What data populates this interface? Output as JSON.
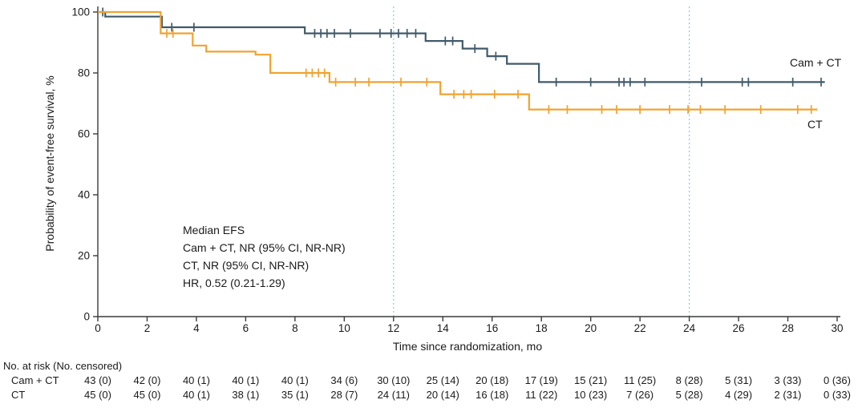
{
  "chart_data": {
    "type": "line",
    "subtype": "kaplan-meier-step",
    "title": "",
    "xlabel": "Time since randomization, mo",
    "ylabel": "Probability of event-free survival, %",
    "xlim": [
      0,
      30
    ],
    "ylim": [
      0,
      100
    ],
    "xticks": [
      0,
      2,
      4,
      6,
      8,
      10,
      12,
      14,
      16,
      18,
      20,
      22,
      24,
      26,
      28,
      30
    ],
    "yticks": [
      0,
      20,
      40,
      60,
      80,
      100
    ],
    "reference_lines_x": [
      12,
      24
    ],
    "reference_line_color": "#7fd2e8",
    "axis_color": "#3a3a3a",
    "grid": false,
    "legend_position": "inline-right",
    "series": [
      {
        "id": "cam-ct",
        "name": "Cam + CT",
        "color": "#415a6b",
        "steps": [
          [
            0,
            100
          ],
          [
            0.3,
            98.5
          ],
          [
            2.6,
            95
          ],
          [
            8.4,
            93
          ],
          [
            13.3,
            90.5
          ],
          [
            14.8,
            88
          ],
          [
            15.8,
            85.5
          ],
          [
            16.6,
            83
          ],
          [
            17.9,
            77
          ]
        ],
        "end": 29.5,
        "censors": [
          0.2,
          3.0,
          3.9,
          8.8,
          9.05,
          9.3,
          9.6,
          10.25,
          11.45,
          11.9,
          12.2,
          12.55,
          12.9,
          14.1,
          14.4,
          15.3,
          16.15,
          18.6,
          20.0,
          21.15,
          21.35,
          21.6,
          22.2,
          24.5,
          26.15,
          26.4,
          28.2,
          29.35
        ]
      },
      {
        "id": "ct",
        "name": "CT",
        "color": "#f0a32f",
        "steps": [
          [
            0,
            100
          ],
          [
            2.55,
            93
          ],
          [
            3.85,
            89
          ],
          [
            4.4,
            87
          ],
          [
            6.4,
            86
          ],
          [
            7.0,
            80
          ],
          [
            9.4,
            77
          ],
          [
            13.9,
            73
          ],
          [
            17.5,
            68
          ]
        ],
        "end": 29.2,
        "censors": [
          2.8,
          3.05,
          8.45,
          8.7,
          8.95,
          9.2,
          9.65,
          10.45,
          11.0,
          12.3,
          13.35,
          14.45,
          14.85,
          15.15,
          16.1,
          17.05,
          18.3,
          19.05,
          20.45,
          21.05,
          22.0,
          23.2,
          23.95,
          24.45,
          25.45,
          26.9,
          28.4,
          28.95
        ]
      }
    ],
    "annotation": {
      "lines": [
        "Median EFS",
        "Cam + CT, NR (95% CI, NR-NR)",
        "CT, NR (95% CI, NR-NR)",
        "HR, 0.52 (0.21-1.29)"
      ]
    }
  },
  "risk_table": {
    "header": "No. at risk (No. censored)",
    "times": [
      0,
      2,
      4,
      6,
      8,
      10,
      12,
      14,
      16,
      18,
      20,
      22,
      24,
      26,
      28,
      30
    ],
    "rows": [
      {
        "label": "Cam + CT",
        "values": [
          "43 (0)",
          "42 (0)",
          "40 (1)",
          "40 (1)",
          "40 (1)",
          "34 (6)",
          "30 (10)",
          "25 (14)",
          "20 (18)",
          "17 (19)",
          "15 (21)",
          "11 (25)",
          "8 (28)",
          "5 (31)",
          "3 (33)",
          "0 (36)"
        ]
      },
      {
        "label": "CT",
        "values": [
          "45 (0)",
          "45 (0)",
          "40 (1)",
          "38 (1)",
          "35 (1)",
          "28 (7)",
          "24 (11)",
          "20 (14)",
          "16 (18)",
          "11 (22)",
          "10 (23)",
          "7 (26)",
          "5 (28)",
          "4 (29)",
          "2 (31)",
          "0 (33)"
        ]
      }
    ]
  }
}
